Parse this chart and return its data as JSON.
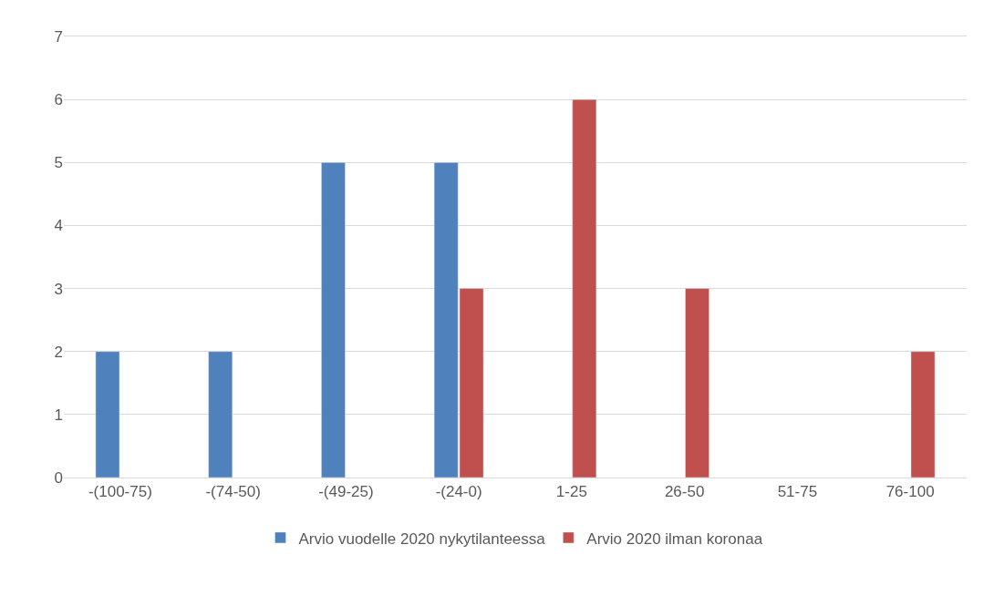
{
  "chart_data": {
    "type": "bar",
    "categories": [
      "-(100-75)",
      "-(74-50)",
      "-(49-25)",
      "-(24-0)",
      "1-25",
      "26-50",
      "51-75",
      "76-100"
    ],
    "series": [
      {
        "name": "Arvio vuodelle 2020 nykytilanteessa",
        "color": "#4f81bd",
        "values": [
          2,
          2,
          5,
          5,
          null,
          null,
          null,
          null
        ]
      },
      {
        "name": "Arvio 2020 ilman koronaa",
        "color": "#c0504d",
        "values": [
          null,
          null,
          null,
          3,
          6,
          3,
          null,
          2
        ]
      }
    ],
    "ylim": [
      0,
      7
    ],
    "yticks": [
      0,
      1,
      2,
      3,
      4,
      5,
      6,
      7
    ],
    "grid": "y",
    "legend": "bottom"
  }
}
